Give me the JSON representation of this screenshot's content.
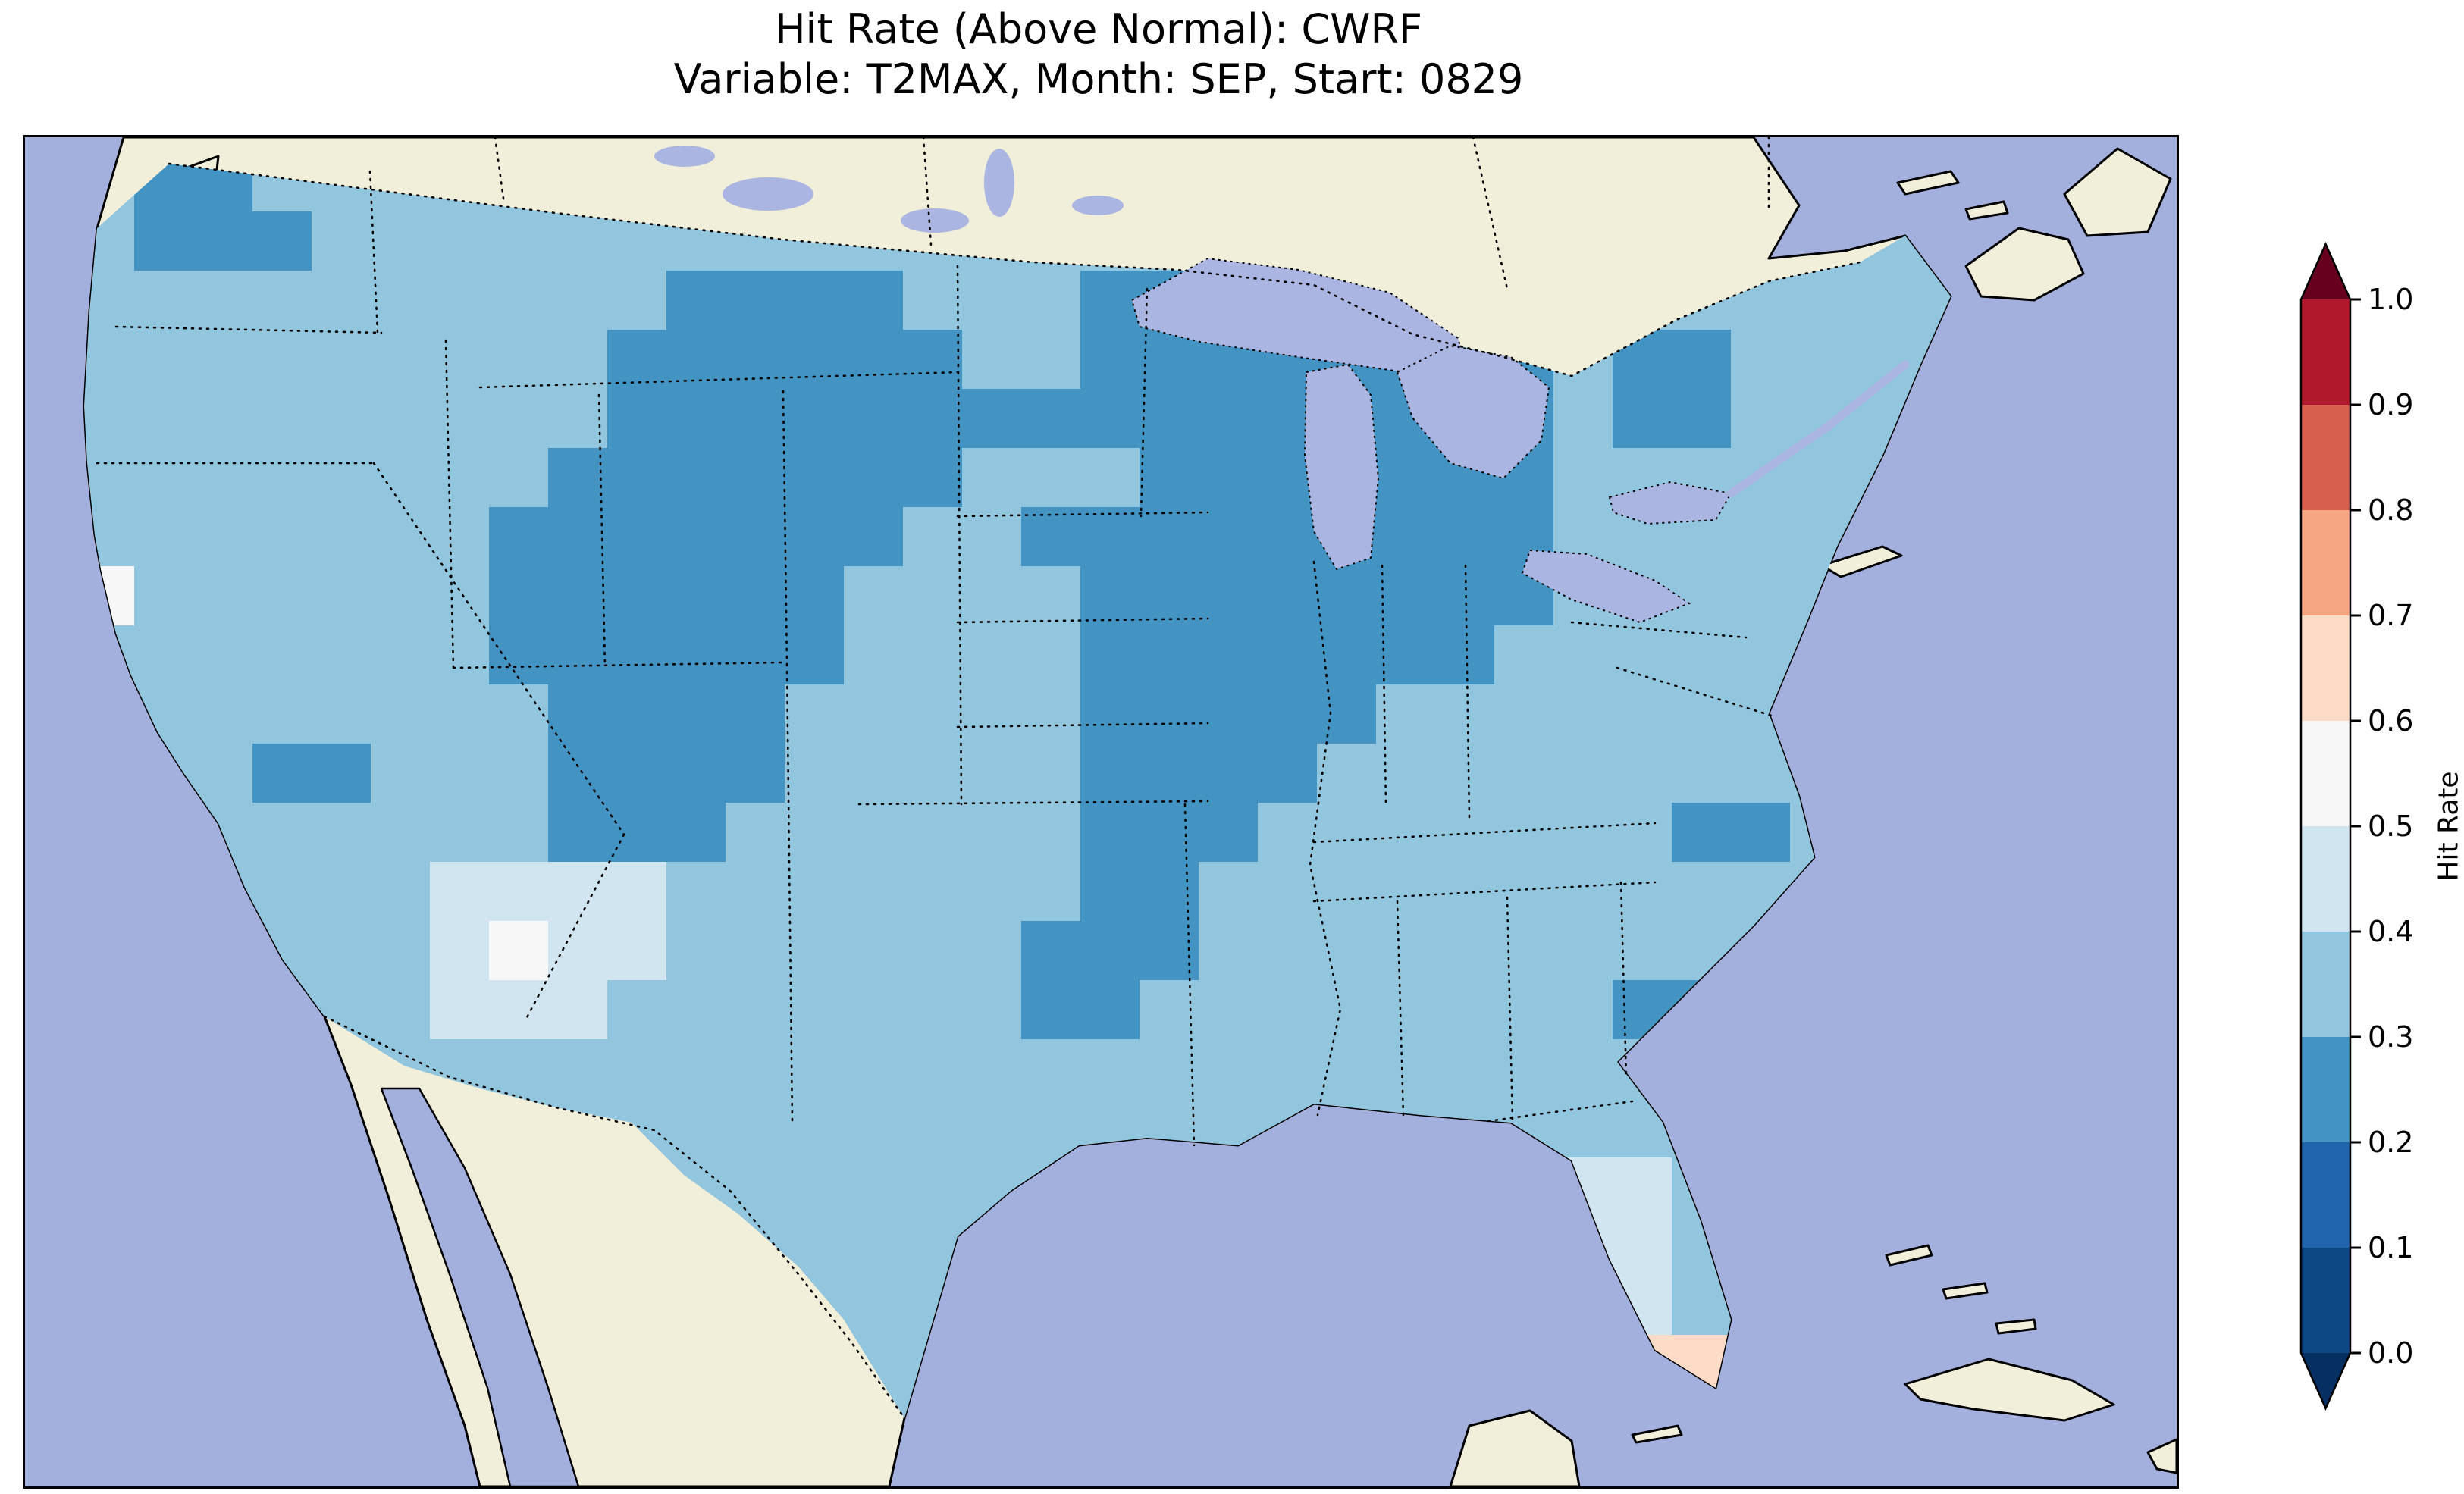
{
  "figure": {
    "title_line1": "Hit Rate (Above Normal): CWRF",
    "title_line2": "Variable: T2MAX, Month: SEP, Start: 0829"
  },
  "map": {
    "region": "Contiguous United States with surrounding Canada, Mexico, Atlantic and Pacific oceans, Great Lakes, Gulf of Mexico, Cuba and Bahamas",
    "colors": {
      "ocean": "#a3afdc",
      "land": "#f1eed9",
      "lake": "#aab5e2"
    },
    "coastline_color": "#000000",
    "political_border_style": "dotted"
  },
  "colorbar": {
    "label": "Hit Rate",
    "tick_labels": [
      "1.0",
      "0.9",
      "0.8",
      "0.7",
      "0.6",
      "0.5",
      "0.4",
      "0.3",
      "0.2",
      "0.1",
      "0.0"
    ],
    "segments_top_to_bottom": [
      "#b2182b",
      "#d6604d",
      "#f4a582",
      "#fddbc7",
      "#f7f7f7",
      "#d1e5f0",
      "#92c5de",
      "#4393c3",
      "#2166ac",
      "#0e4884"
    ],
    "extend_over_color": "#67001f",
    "extend_under_color": "#053061",
    "extend": "both"
  },
  "chart_data": {
    "type": "heatmap",
    "title": "Hit Rate (Above Normal): CWRF",
    "subtitle": "Variable: T2MAX, Month: SEP, Start: 0829",
    "model": "CWRF",
    "variable": "T2MAX",
    "month": "SEP",
    "start": "0829",
    "colormap": "RdBu reversed, discrete 0.1 bins from 0.0 to 1.0, extended at both ends",
    "colorbar_label": "Hit Rate",
    "colorbar_ticks": [
      0.0,
      0.1,
      0.2,
      0.3,
      0.4,
      0.5,
      0.6,
      0.7,
      0.8,
      0.9,
      1.0
    ],
    "bin_colors": {
      "0": "#0e4884",
      "1": "#2166ac",
      "2": "#4393c3",
      "3": "#92c5de",
      "4": "#d1e5f0",
      "5": "#f7f7f7",
      "6": "#fddbc7"
    },
    "bin_values": {
      "2": "0.2-0.3",
      "3": "0.3-0.4",
      "4": "0.4-0.5",
      "5": "0.5-0.6",
      "6": "0.6-0.7"
    },
    "grid_encoding": "Coarse approximation of the gridded hit-rate field. Each string is one west-to-east band of cells, listed north to south; each character is one cell whose digit d means hit rate in [d/10,(d+1)/10). Cells are clipped to the CONUS outline; no data is plotted outside the U.S.",
    "grid_rows": [
      "32233333333333333333333333333333",
      "32223333333333333333333333333333",
      "33333333332222333222222233333333",
      "33333333322222233222222223223333",
      "33333333322222222222222223223333",
      "33333333222222233322222223333333",
      "33333332222222332222222223333333",
      "53333332222223333222222223333333",
      "33333332222223333222222233333333",
      "33333333222233333222223333333333",
      "33322333222233333222233333333333",
      "33333333222333333222333333322333",
      "33333344443333333223333333333333",
      "33333345443333332223333333333333",
      "33333344433333332233333333223333",
      "33333333333333333333333333333333",
      "33333333333333333333333333333333",
      "33333333333333333333333334433333",
      "33333333333333333333333334433333",
      "33333333333333333333333333433333",
      "33333333333333333333333333663333",
      "33333333333333333333333333333333"
    ],
    "summary": "Most of the CONUS shows hit rates of 0.3-0.4 (light blue). A large 0.2-0.3 region (medium blue) covers the northern Rockies, northern Plains, upper Midwest, Great Lakes states and Ohio/mid-Mississippi valleys, plus the Four Corners/Colorado Plateau, a Washington-state patch, a southern-Nevada spot and a coastal-Carolina spot. Lighter 0.4-0.5 areas appear along the Arizona/New Mexico border and over central Florida, with isolated 0.5-0.7 cells on the central California coast and near south Florida."
  }
}
